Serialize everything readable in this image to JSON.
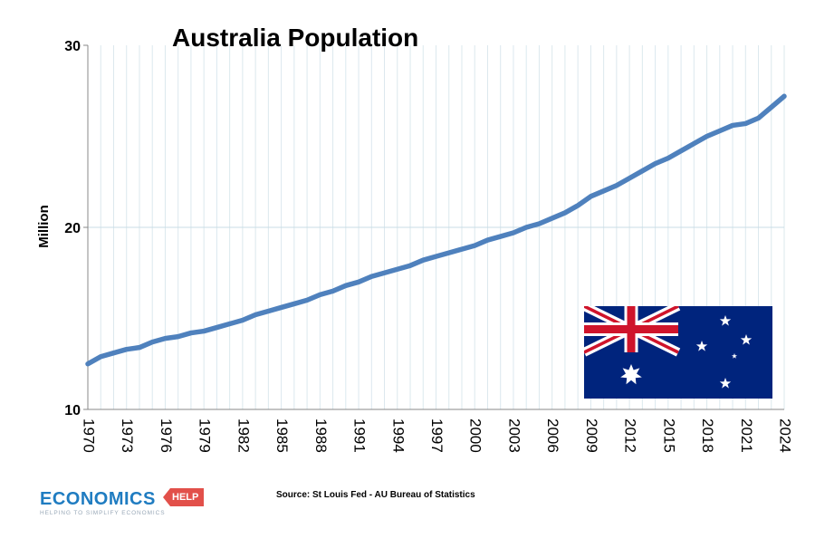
{
  "chart_data": {
    "type": "line",
    "title": "Australia Population",
    "xlabel": "",
    "ylabel": "Million",
    "ylim": [
      10,
      30
    ],
    "yticks": [
      10,
      20,
      30
    ],
    "xlim": [
      1970,
      2024
    ],
    "xticks": [
      1970,
      1973,
      1976,
      1979,
      1982,
      1985,
      1988,
      1991,
      1994,
      1997,
      2000,
      2003,
      2006,
      2009,
      2012,
      2015,
      2018,
      2021,
      2024
    ],
    "grid": "vertical lines per year; horizontal line at 20",
    "series": [
      {
        "x": [
          1970,
          1971,
          1972,
          1973,
          1974,
          1975,
          1976,
          1977,
          1978,
          1979,
          1980,
          1981,
          1982,
          1983,
          1984,
          1985,
          1986,
          1987,
          1988,
          1989,
          1990,
          1991,
          1992,
          1993,
          1994,
          1995,
          1996,
          1997,
          1998,
          1999,
          2000,
          2001,
          2002,
          2003,
          2004,
          2005,
          2006,
          2007,
          2008,
          2009,
          2010,
          2011,
          2012,
          2013,
          2014,
          2015,
          2016,
          2017,
          2018,
          2019,
          2020,
          2021,
          2022,
          2023,
          2024
        ],
        "values": [
          12.5,
          12.9,
          13.1,
          13.3,
          13.4,
          13.7,
          13.9,
          14.0,
          14.2,
          14.3,
          14.5,
          14.7,
          14.9,
          15.2,
          15.4,
          15.6,
          15.8,
          16.0,
          16.3,
          16.5,
          16.8,
          17.0,
          17.3,
          17.5,
          17.7,
          17.9,
          18.2,
          18.4,
          18.6,
          18.8,
          19.0,
          19.3,
          19.5,
          19.7,
          20.0,
          20.2,
          20.5,
          20.8,
          21.2,
          21.7,
          22.0,
          22.3,
          22.7,
          23.1,
          23.5,
          23.8,
          24.2,
          24.6,
          25.0,
          25.3,
          25.6,
          25.7,
          26.0,
          26.6,
          27.2
        ],
        "color": "#4f81bd"
      }
    ]
  },
  "source": "Source: St Louis Fed - AU Bureau of Statistics",
  "logo": {
    "word": "ECONOMICS",
    "tag": "HELP",
    "tagline": "HELPING TO SIMPLIFY ECONOMICS"
  }
}
